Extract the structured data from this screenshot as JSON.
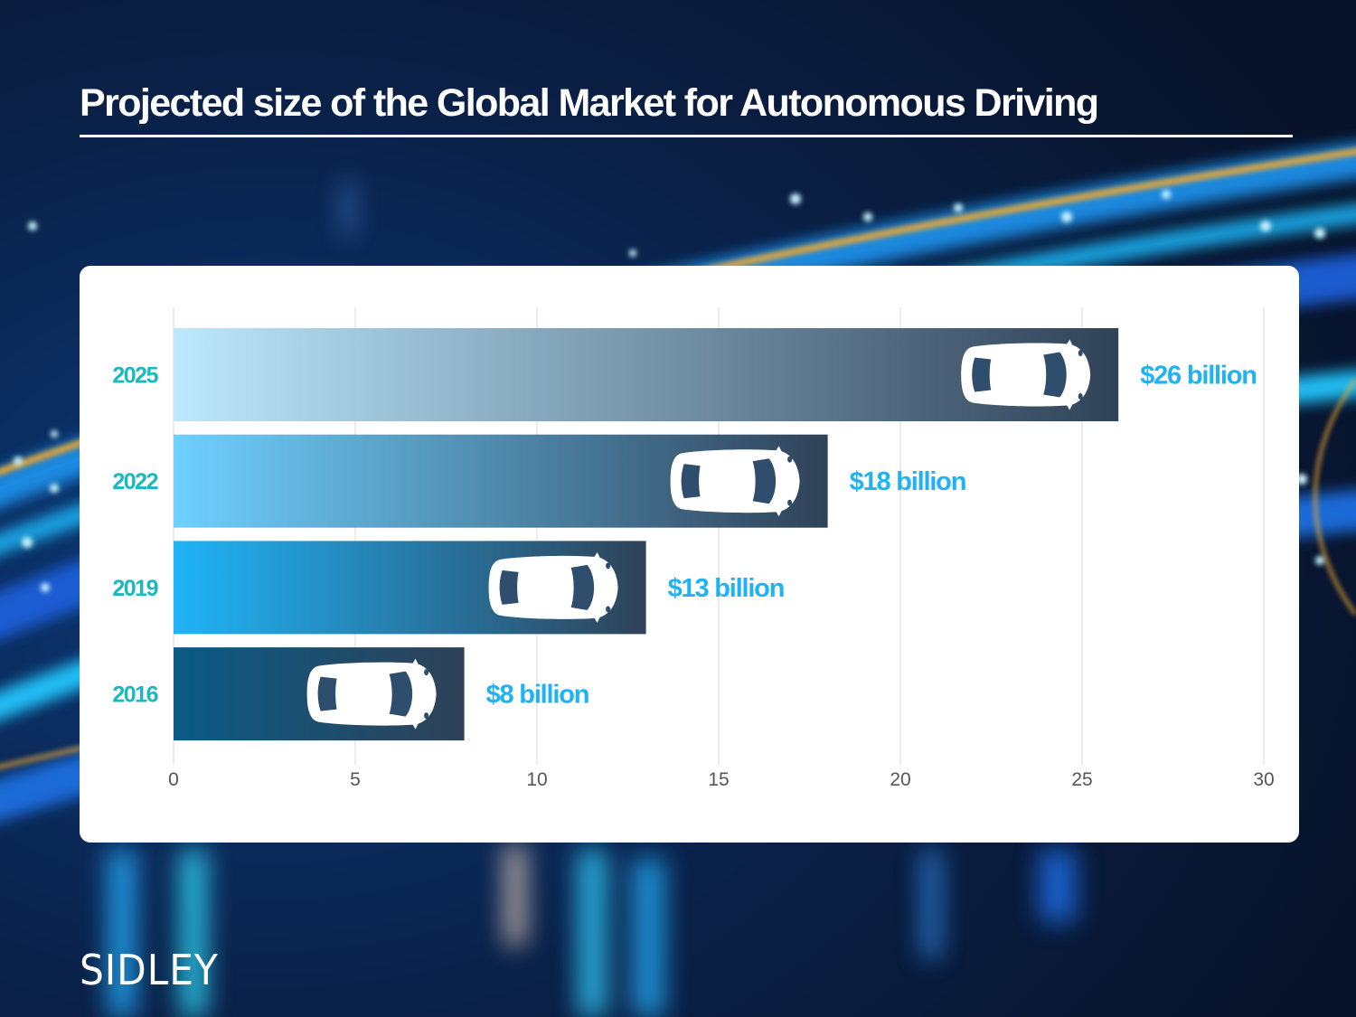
{
  "page": {
    "title": "Projected size of the Global Market for Autonomous Driving",
    "logo": "SIDLEY"
  },
  "colors": {
    "background": "#0a1428",
    "card": "#ffffff",
    "category_label": "#1ab8c0",
    "value_label": "#1fb2f5",
    "tick_label": "#555555",
    "gridline": "#e6e6e6",
    "bar_end": "#2f4258",
    "car": "#ffffff"
  },
  "chart_data": {
    "type": "bar",
    "orientation": "horizontal",
    "title": "Projected size of the Global Market for Autonomous Driving",
    "xlabel": "",
    "ylabel": "",
    "categories": [
      "2025",
      "2022",
      "2019",
      "2016"
    ],
    "values": [
      26,
      18,
      13,
      8
    ],
    "unit": "billion USD",
    "data_labels": [
      "$26 billion",
      "$18 billion",
      "$13 billion",
      "$8 billion"
    ],
    "bar_start_colors": [
      "#bde8fd",
      "#6fd0ff",
      "#1fb4f8",
      "#0b5a85"
    ],
    "xlim": [
      0,
      30
    ],
    "xticks": [
      0,
      5,
      10,
      15,
      20,
      25,
      30
    ],
    "xtick_labels": [
      "0",
      "5",
      "10",
      "15",
      "20",
      "25",
      "30"
    ],
    "grid": true,
    "legend": "none",
    "bar_icon": "car-top-view-icon"
  }
}
